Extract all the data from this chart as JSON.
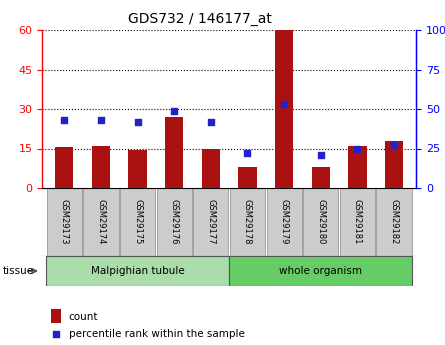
{
  "title": "GDS732 / 146177_at",
  "samples": [
    "GSM29173",
    "GSM29174",
    "GSM29175",
    "GSM29176",
    "GSM29177",
    "GSM29178",
    "GSM29179",
    "GSM29180",
    "GSM29181",
    "GSM29182"
  ],
  "counts": [
    15.5,
    16.0,
    14.5,
    27.0,
    15.0,
    8.0,
    60.0,
    8.0,
    16.0,
    18.0
  ],
  "percentiles": [
    43,
    43,
    42,
    49,
    42,
    22,
    53,
    21,
    25,
    27
  ],
  "bar_color": "#aa1111",
  "dot_color": "#2222cc",
  "ylim_left": [
    0,
    60
  ],
  "ylim_right": [
    0,
    100
  ],
  "yticks_left": [
    0,
    15,
    30,
    45,
    60
  ],
  "yticks_right": [
    0,
    25,
    50,
    75,
    100
  ],
  "ytick_labels_right": [
    "0",
    "25",
    "50",
    "75",
    "100%"
  ],
  "groups": [
    {
      "label": "Malpighian tubule",
      "color": "#aaddaa",
      "start": 0,
      "end": 4
    },
    {
      "label": "whole organism",
      "color": "#66cc66",
      "start": 5,
      "end": 9
    }
  ],
  "tissue_label": "tissue",
  "legend_count_label": "count",
  "legend_percentile_label": "percentile rank within the sample",
  "tick_label_bg": "#cccccc",
  "bar_width": 0.5
}
